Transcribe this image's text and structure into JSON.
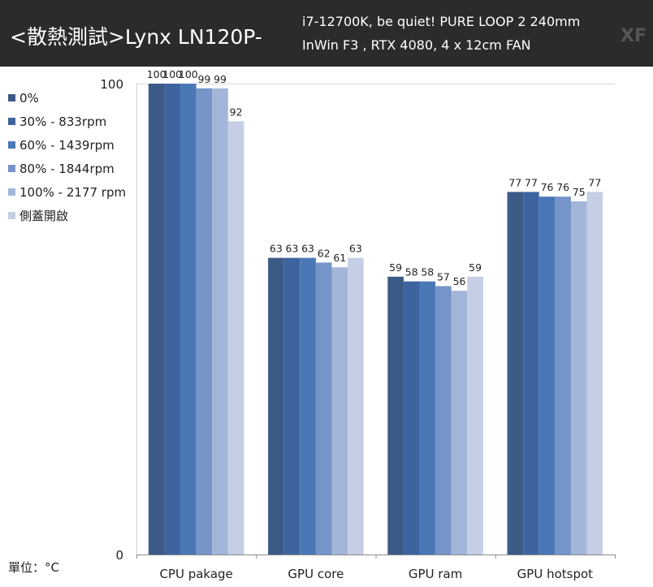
{
  "header": {
    "title": "<散熱測試>Lynx LN120P-",
    "spec_line1": "i7-12700K,  be quiet!  PURE LOOP 2 240mm",
    "spec_line2": "InWin F3 , RTX 4080, 4 x 12cm FAN",
    "brand": "XF"
  },
  "unit_label": "單位：°C",
  "colors": [
    "#3b5a86",
    "#3e64a0",
    "#4a78b6",
    "#7594c8",
    "#a3b5d8",
    "#c4cee4"
  ],
  "chart_data": {
    "type": "bar",
    "title": "",
    "xlabel": "",
    "ylabel": "",
    "ylim": [
      0,
      100
    ],
    "y_ticks": [
      "0",
      "100"
    ],
    "grid": true,
    "legend_position": "left",
    "categories": [
      "CPU pakage",
      "GPU core",
      "GPU ram",
      "GPU hotspot"
    ],
    "series": [
      {
        "name": "0%",
        "values": [
          100,
          63,
          59,
          77
        ]
      },
      {
        "name": "30% - 833rpm",
        "values": [
          100,
          63,
          58,
          77
        ]
      },
      {
        "name": "60% - 1439rpm",
        "values": [
          100,
          63,
          58,
          76
        ]
      },
      {
        "name": "80% - 1844rpm",
        "values": [
          99,
          62,
          57,
          76
        ]
      },
      {
        "name": "100% - 2177 rpm",
        "values": [
          99,
          61,
          56,
          75
        ]
      },
      {
        "name": "側蓋開啟",
        "values": [
          92,
          63,
          59,
          77
        ]
      }
    ]
  }
}
